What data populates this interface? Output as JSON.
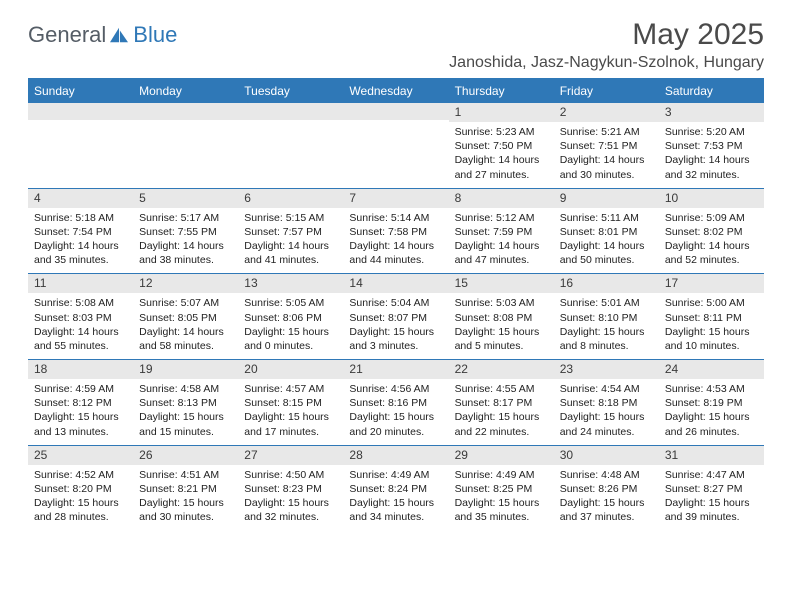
{
  "brand": {
    "part1": "General",
    "part2": "Blue"
  },
  "title": "May 2025",
  "location": "Janoshida, Jasz-Nagykun-Szolnok, Hungary",
  "colors": {
    "accent": "#2f78b7",
    "daynum_bg": "#e8e8e8",
    "text": "#222222",
    "header_text": "#4a4a4a"
  },
  "days_of_week": [
    "Sunday",
    "Monday",
    "Tuesday",
    "Wednesday",
    "Thursday",
    "Friday",
    "Saturday"
  ],
  "weeks": [
    [
      {
        "n": "",
        "sunrise": "",
        "sunset": "",
        "daylight": ""
      },
      {
        "n": "",
        "sunrise": "",
        "sunset": "",
        "daylight": ""
      },
      {
        "n": "",
        "sunrise": "",
        "sunset": "",
        "daylight": ""
      },
      {
        "n": "",
        "sunrise": "",
        "sunset": "",
        "daylight": ""
      },
      {
        "n": "1",
        "sunrise": "5:23 AM",
        "sunset": "7:50 PM",
        "daylight": "14 hours and 27 minutes."
      },
      {
        "n": "2",
        "sunrise": "5:21 AM",
        "sunset": "7:51 PM",
        "daylight": "14 hours and 30 minutes."
      },
      {
        "n": "3",
        "sunrise": "5:20 AM",
        "sunset": "7:53 PM",
        "daylight": "14 hours and 32 minutes."
      }
    ],
    [
      {
        "n": "4",
        "sunrise": "5:18 AM",
        "sunset": "7:54 PM",
        "daylight": "14 hours and 35 minutes."
      },
      {
        "n": "5",
        "sunrise": "5:17 AM",
        "sunset": "7:55 PM",
        "daylight": "14 hours and 38 minutes."
      },
      {
        "n": "6",
        "sunrise": "5:15 AM",
        "sunset": "7:57 PM",
        "daylight": "14 hours and 41 minutes."
      },
      {
        "n": "7",
        "sunrise": "5:14 AM",
        "sunset": "7:58 PM",
        "daylight": "14 hours and 44 minutes."
      },
      {
        "n": "8",
        "sunrise": "5:12 AM",
        "sunset": "7:59 PM",
        "daylight": "14 hours and 47 minutes."
      },
      {
        "n": "9",
        "sunrise": "5:11 AM",
        "sunset": "8:01 PM",
        "daylight": "14 hours and 50 minutes."
      },
      {
        "n": "10",
        "sunrise": "5:09 AM",
        "sunset": "8:02 PM",
        "daylight": "14 hours and 52 minutes."
      }
    ],
    [
      {
        "n": "11",
        "sunrise": "5:08 AM",
        "sunset": "8:03 PM",
        "daylight": "14 hours and 55 minutes."
      },
      {
        "n": "12",
        "sunrise": "5:07 AM",
        "sunset": "8:05 PM",
        "daylight": "14 hours and 58 minutes."
      },
      {
        "n": "13",
        "sunrise": "5:05 AM",
        "sunset": "8:06 PM",
        "daylight": "15 hours and 0 minutes."
      },
      {
        "n": "14",
        "sunrise": "5:04 AM",
        "sunset": "8:07 PM",
        "daylight": "15 hours and 3 minutes."
      },
      {
        "n": "15",
        "sunrise": "5:03 AM",
        "sunset": "8:08 PM",
        "daylight": "15 hours and 5 minutes."
      },
      {
        "n": "16",
        "sunrise": "5:01 AM",
        "sunset": "8:10 PM",
        "daylight": "15 hours and 8 minutes."
      },
      {
        "n": "17",
        "sunrise": "5:00 AM",
        "sunset": "8:11 PM",
        "daylight": "15 hours and 10 minutes."
      }
    ],
    [
      {
        "n": "18",
        "sunrise": "4:59 AM",
        "sunset": "8:12 PM",
        "daylight": "15 hours and 13 minutes."
      },
      {
        "n": "19",
        "sunrise": "4:58 AM",
        "sunset": "8:13 PM",
        "daylight": "15 hours and 15 minutes."
      },
      {
        "n": "20",
        "sunrise": "4:57 AM",
        "sunset": "8:15 PM",
        "daylight": "15 hours and 17 minutes."
      },
      {
        "n": "21",
        "sunrise": "4:56 AM",
        "sunset": "8:16 PM",
        "daylight": "15 hours and 20 minutes."
      },
      {
        "n": "22",
        "sunrise": "4:55 AM",
        "sunset": "8:17 PM",
        "daylight": "15 hours and 22 minutes."
      },
      {
        "n": "23",
        "sunrise": "4:54 AM",
        "sunset": "8:18 PM",
        "daylight": "15 hours and 24 minutes."
      },
      {
        "n": "24",
        "sunrise": "4:53 AM",
        "sunset": "8:19 PM",
        "daylight": "15 hours and 26 minutes."
      }
    ],
    [
      {
        "n": "25",
        "sunrise": "4:52 AM",
        "sunset": "8:20 PM",
        "daylight": "15 hours and 28 minutes."
      },
      {
        "n": "26",
        "sunrise": "4:51 AM",
        "sunset": "8:21 PM",
        "daylight": "15 hours and 30 minutes."
      },
      {
        "n": "27",
        "sunrise": "4:50 AM",
        "sunset": "8:23 PM",
        "daylight": "15 hours and 32 minutes."
      },
      {
        "n": "28",
        "sunrise": "4:49 AM",
        "sunset": "8:24 PM",
        "daylight": "15 hours and 34 minutes."
      },
      {
        "n": "29",
        "sunrise": "4:49 AM",
        "sunset": "8:25 PM",
        "daylight": "15 hours and 35 minutes."
      },
      {
        "n": "30",
        "sunrise": "4:48 AM",
        "sunset": "8:26 PM",
        "daylight": "15 hours and 37 minutes."
      },
      {
        "n": "31",
        "sunrise": "4:47 AM",
        "sunset": "8:27 PM",
        "daylight": "15 hours and 39 minutes."
      }
    ]
  ],
  "labels": {
    "sunrise_prefix": "Sunrise: ",
    "sunset_prefix": "Sunset: ",
    "daylight_prefix": "Daylight: "
  }
}
